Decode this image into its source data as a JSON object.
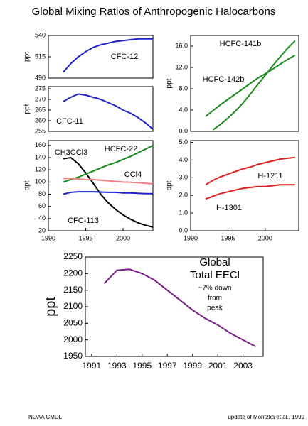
{
  "title": "Global Mixing Ratios of Anthropogenic Halocarbons",
  "chart_data": [
    {
      "type": "line",
      "y_label": "ppt",
      "xlim": [
        1990,
        2004
      ],
      "ylim": [
        490,
        540
      ],
      "yticks": [
        490,
        515,
        540
      ],
      "series": [
        {
          "name": "CFC-12",
          "color": "#2222cc",
          "x": [
            1992,
            1993,
            1994,
            1995,
            1996,
            1997,
            1998,
            1999,
            2000,
            2001,
            2002,
            2003,
            2004
          ],
          "values": [
            497,
            507,
            515,
            521,
            526,
            529,
            531,
            533,
            534,
            535,
            536,
            536,
            536
          ]
        }
      ]
    },
    {
      "type": "line",
      "y_label": "ppt",
      "xlim": [
        1990,
        2004
      ],
      "ylim": [
        255,
        276
      ],
      "yticks": [
        255,
        260,
        265,
        270,
        275
      ],
      "series": [
        {
          "name": "CFC-11",
          "color": "#2222cc",
          "x": [
            1992,
            1993,
            1994,
            1995,
            1996,
            1997,
            1998,
            1999,
            2000,
            2001,
            2002,
            2003,
            2004
          ],
          "values": [
            269,
            271,
            272.5,
            272,
            271,
            270,
            268.5,
            267,
            265,
            263.5,
            261.5,
            259,
            256
          ]
        }
      ]
    },
    {
      "type": "line",
      "y_label": "ppt",
      "xlim": [
        1990,
        2004
      ],
      "ylim": [
        20,
        168
      ],
      "yticks": [
        20,
        40,
        60,
        80,
        100,
        120,
        140,
        160
      ],
      "xticks": [
        1990,
        1995,
        2000
      ],
      "series": [
        {
          "name": "CH3CCl3",
          "color": "#000000",
          "x": [
            1992,
            1993,
            1994,
            1995,
            1996,
            1997,
            1998,
            1999,
            2000,
            2001,
            2002,
            2003,
            2004
          ],
          "values": [
            138,
            140,
            130,
            115,
            98,
            80,
            66,
            55,
            46,
            39,
            33,
            29,
            26
          ]
        },
        {
          "name": "HCFC-22",
          "color": "#1a8a1a",
          "x": [
            1992,
            1993,
            1994,
            1995,
            1996,
            1997,
            1998,
            1999,
            2000,
            2001,
            2002,
            2003,
            2004
          ],
          "values": [
            100,
            104,
            108,
            113,
            118,
            123,
            128,
            132,
            137,
            142,
            148,
            154,
            160
          ]
        },
        {
          "name": "CCl4",
          "color": "#f08080",
          "x": [
            1992,
            1993,
            1994,
            1995,
            1996,
            1997,
            1998,
            1999,
            2000,
            2001,
            2002,
            2003,
            2004
          ],
          "values": [
            106,
            106,
            105,
            104,
            104,
            103,
            102,
            101,
            100,
            99.5,
            99,
            98,
            97
          ]
        },
        {
          "name": "CFC-113",
          "color": "#2222cc",
          "x": [
            1992,
            1993,
            1994,
            1995,
            1996,
            1997,
            1998,
            1999,
            2000,
            2001,
            2002,
            2003,
            2004
          ],
          "values": [
            80,
            83,
            84,
            84,
            84,
            83.5,
            83,
            83,
            82,
            82,
            81.5,
            81,
            81
          ]
        }
      ]
    },
    {
      "type": "line",
      "y_label": "ppt",
      "xlim": [
        1990,
        2004.5
      ],
      "ylim": [
        0,
        18
      ],
      "yticks": [
        {
          "value": 0,
          "label": "0.0"
        },
        {
          "value": 4,
          "label": "4.0"
        },
        {
          "value": 8,
          "label": "8.0"
        },
        {
          "value": 12,
          "label": "12.0"
        },
        {
          "value": 16,
          "label": "16.0"
        }
      ],
      "series": [
        {
          "name": "HCFC-141b",
          "color": "#1a8a1a",
          "x": [
            1993,
            1994,
            1995,
            1996,
            1997,
            1998,
            1999,
            2000,
            2001,
            2002,
            2003,
            2004
          ],
          "values": [
            0.3,
            1.3,
            2.5,
            3.8,
            5.3,
            7,
            8.8,
            10.5,
            12.3,
            14,
            15.6,
            17
          ]
        },
        {
          "name": "HCFC-142b",
          "color": "#1a8a1a",
          "x": [
            1992,
            1993,
            1994,
            1995,
            1996,
            1997,
            1998,
            1999,
            2000,
            2001,
            2002,
            2003,
            2004
          ],
          "values": [
            2.8,
            3.9,
            5,
            6,
            7,
            8,
            9,
            10,
            10.8,
            11.7,
            12.6,
            13.5,
            14.3
          ]
        }
      ]
    },
    {
      "type": "line",
      "y_label": "ppt",
      "xlim": [
        1990,
        2004.5
      ],
      "ylim": [
        0,
        5.1
      ],
      "yticks": [
        {
          "value": 0,
          "label": "0.0"
        },
        {
          "value": 1,
          "label": "1.0"
        },
        {
          "value": 2,
          "label": "2.0"
        },
        {
          "value": 3,
          "label": "3.0"
        },
        {
          "value": 4,
          "label": "4.0"
        },
        {
          "value": 5,
          "label": "5.0"
        }
      ],
      "xticks": [
        1990,
        1995,
        2000
      ],
      "series": [
        {
          "name": "H-1211",
          "color": "#e02020",
          "x": [
            1992,
            1993,
            1994,
            1995,
            1996,
            1997,
            1998,
            1999,
            2000,
            2001,
            2002,
            2003,
            2004
          ],
          "values": [
            2.6,
            2.85,
            3.05,
            3.2,
            3.35,
            3.5,
            3.6,
            3.75,
            3.85,
            3.95,
            4.05,
            4.1,
            4.15
          ]
        },
        {
          "name": "H-1301",
          "color": "#e02020",
          "x": [
            1992,
            1993,
            1994,
            1995,
            1996,
            1997,
            1998,
            1999,
            2000,
            2001,
            2002,
            2003,
            2004
          ],
          "values": [
            1.8,
            1.95,
            2.1,
            2.2,
            2.3,
            2.4,
            2.45,
            2.5,
            2.5,
            2.55,
            2.6,
            2.6,
            2.6
          ]
        }
      ]
    },
    {
      "type": "line",
      "y_label": "ppt",
      "xlim": [
        1990.5,
        2004.6
      ],
      "ylim": [
        1950,
        2250
      ],
      "yticks": [
        1950,
        2000,
        2050,
        2100,
        2150,
        2200,
        2250
      ],
      "xticks": [
        1991,
        1993,
        1995,
        1997,
        1999,
        2001,
        2003
      ],
      "annotations": [
        "Global",
        "Total EECl",
        "~7% down",
        "from",
        "peak"
      ],
      "series": [
        {
          "color": "#7a1a8a",
          "x": [
            1992,
            1993,
            1994,
            1995,
            1996,
            1997,
            1998,
            1999,
            2000,
            2001,
            2002,
            2003,
            2004
          ],
          "values": [
            2170,
            2210,
            2213,
            2200,
            2180,
            2150,
            2120,
            2090,
            2065,
            2045,
            2020,
            2000,
            1980
          ]
        }
      ]
    }
  ],
  "footer": {
    "left": "NOAA CMDL",
    "right": "update of Montzka et al., 1999"
  }
}
